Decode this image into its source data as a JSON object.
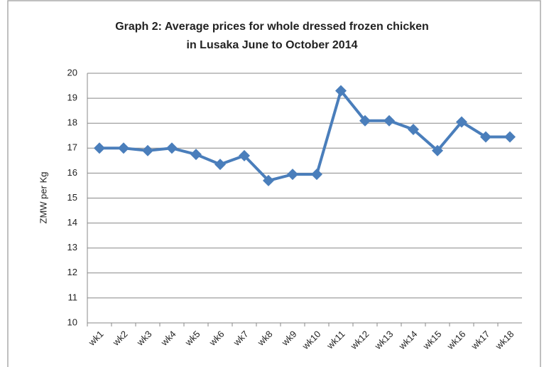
{
  "chart_data": {
    "type": "line",
    "title": [
      "Graph 2: Average prices for whole dressed frozen chicken",
      "in Lusaka June to October 2014"
    ],
    "y_label": "ZMW per Kg",
    "categories": [
      "wk1",
      "wk2",
      "wk3",
      "wk4",
      "wk5",
      "wk6",
      "wk7",
      "wk8",
      "wk9",
      "wk10",
      "wk11",
      "wk12",
      "wk13",
      "wk14",
      "wk15",
      "wk16",
      "wk17",
      "wk18"
    ],
    "series": [
      {
        "name": "Price",
        "color": "#4a7ebb",
        "values": [
          17.0,
          17.0,
          16.9,
          17.0,
          16.75,
          16.35,
          16.7,
          15.7,
          15.95,
          15.95,
          19.3,
          18.1,
          18.1,
          17.75,
          16.9,
          18.05,
          17.45,
          17.45
        ]
      }
    ],
    "ylim": [
      10,
      20
    ],
    "yticks": [
      10,
      11,
      12,
      13,
      14,
      15,
      16,
      17,
      18,
      19,
      20
    ],
    "grid": true
  }
}
